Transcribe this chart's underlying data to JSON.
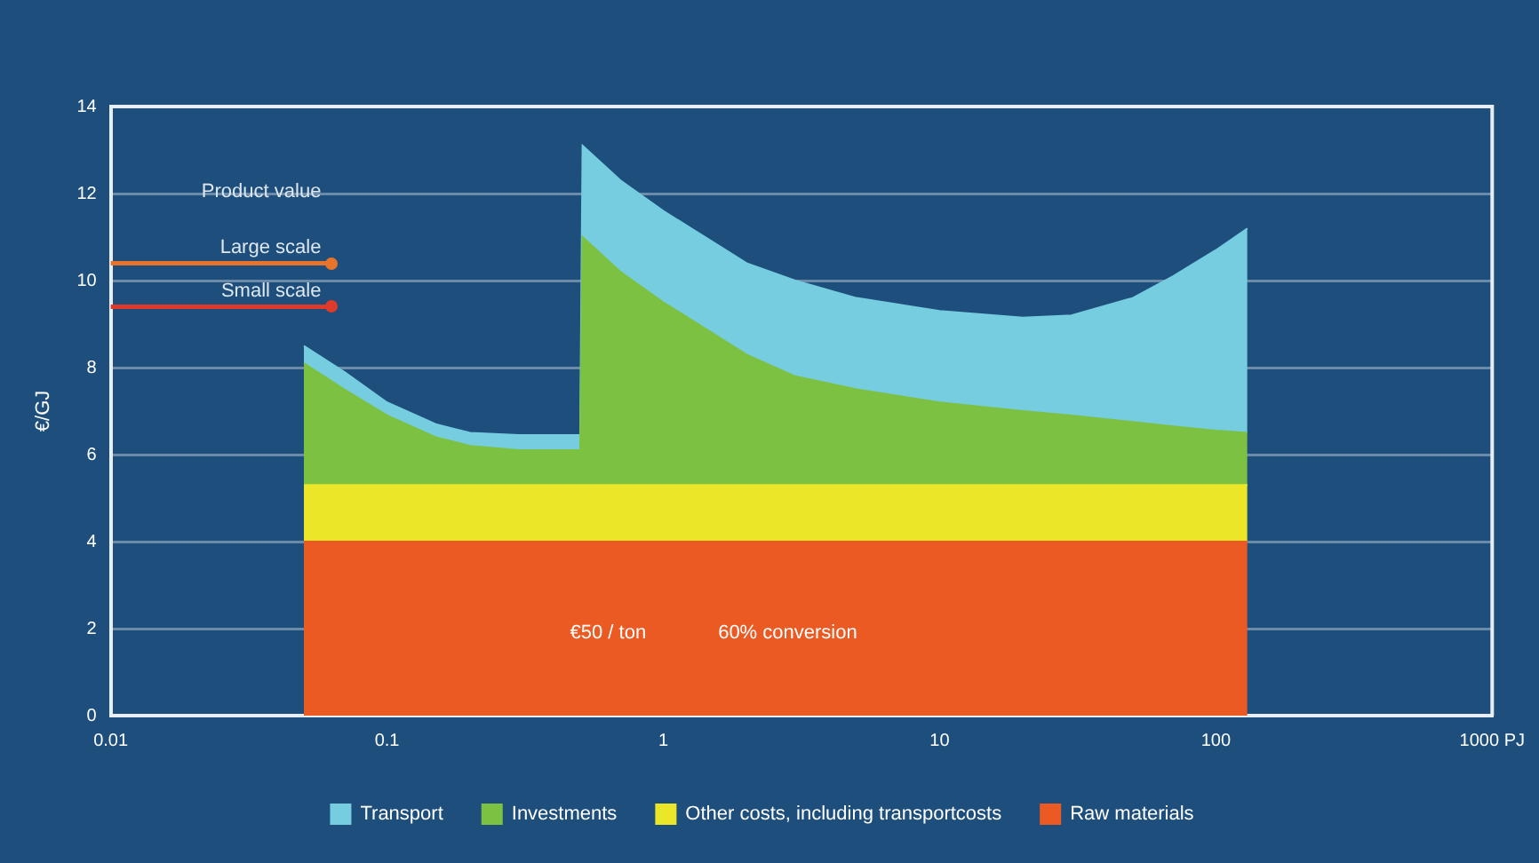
{
  "chart_data": {
    "type": "area",
    "ylabel": "€/GJ",
    "stacked": true,
    "log": "x",
    "grid": "y",
    "legend": "bottom",
    "x": [
      0.05,
      0.07,
      0.1,
      0.15,
      0.2,
      0.3,
      0.5,
      0.51,
      0.7,
      1,
      1.5,
      2,
      3,
      5,
      10,
      20,
      30,
      50,
      70,
      100,
      130
    ],
    "series": [
      {
        "name": "Raw materials",
        "color": "#ec5a24",
        "values": [
          4,
          4,
          4,
          4,
          4,
          4,
          4,
          4,
          4,
          4,
          4,
          4,
          4,
          4,
          4,
          4,
          4,
          4,
          4,
          4,
          4
        ]
      },
      {
        "name": "Other costs, including transportcosts",
        "color": "#ebe628",
        "values": [
          1.3,
          1.3,
          1.3,
          1.3,
          1.3,
          1.3,
          1.3,
          1.3,
          1.3,
          1.3,
          1.3,
          1.3,
          1.3,
          1.3,
          1.3,
          1.3,
          1.3,
          1.3,
          1.3,
          1.3,
          1.3
        ]
      },
      {
        "name": "Investments",
        "color": "#7cc142",
        "values": [
          2.8,
          2.2,
          1.6,
          1.1,
          0.9,
          0.8,
          0.8,
          5.7,
          4.9,
          4.2,
          3.5,
          3.0,
          2.5,
          2.2,
          1.9,
          1.7,
          1.6,
          1.45,
          1.35,
          1.25,
          1.2
        ]
      },
      {
        "name": "Transport",
        "color": "#76cde0",
        "values": [
          0.4,
          0.4,
          0.3,
          0.3,
          0.3,
          0.35,
          0.35,
          2.1,
          2.1,
          2.1,
          2.1,
          2.1,
          2.2,
          2.1,
          2.1,
          2.15,
          2.3,
          2.85,
          3.45,
          4.15,
          4.7
        ]
      }
    ],
    "xlim": [
      0.01,
      1000
    ],
    "xticks": [
      0.01,
      0.1,
      1,
      10,
      100,
      {
        "value": 1000,
        "label": "1000 PJ"
      }
    ],
    "ylim": [
      0,
      14
    ],
    "yticks": [
      0,
      2,
      4,
      6,
      8,
      10,
      12,
      14
    ],
    "ref_lines": [
      {
        "axis": "y",
        "value": 10.4,
        "label": "Large scale",
        "color": "#e8732a"
      },
      {
        "axis": "y",
        "value": 9.4,
        "label": "Small scale",
        "color": "#e03a2a"
      }
    ],
    "annotations": [
      "Product value",
      "€50 / ton",
      "60% conversion"
    ]
  }
}
